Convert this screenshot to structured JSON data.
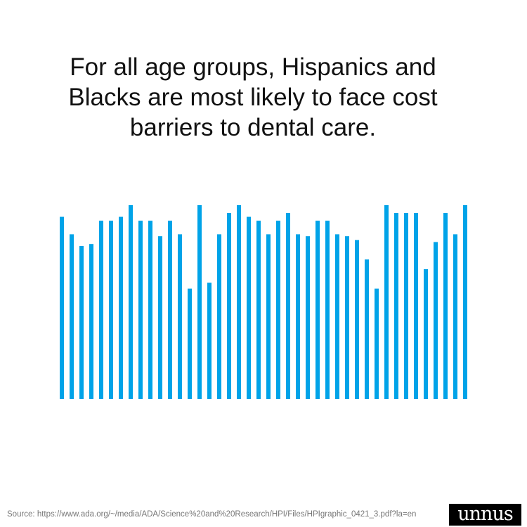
{
  "chart_data": {
    "type": "bar",
    "title": "For all age groups, Hispanics and Blacks are most likely to face cost barriers to dental care.",
    "title_lines": [
      "For all age groups, Hispanics and",
      "Blacks are most likely to face cost",
      "barriers to dental care."
    ],
    "xlabel": "",
    "ylabel": "",
    "ylim": [
      0,
      100
    ],
    "grid": false,
    "values": [
      94,
      85,
      79,
      80,
      92,
      92,
      94,
      100,
      92,
      92,
      84,
      92,
      85,
      57,
      100,
      60,
      85,
      96,
      100,
      94,
      92,
      85,
      92,
      96,
      85,
      84,
      92,
      92,
      85,
      84,
      82,
      72,
      57,
      100,
      96,
      96,
      96,
      67,
      81,
      96,
      85,
      100
    ],
    "color": "#00A3E8"
  },
  "source": "Source: https://www.ada.org/~/media/ADA/Science%20and%20Research/HPI/Files/HPIgraphic_0421_3.pdf?la=en",
  "logo": "unnus"
}
